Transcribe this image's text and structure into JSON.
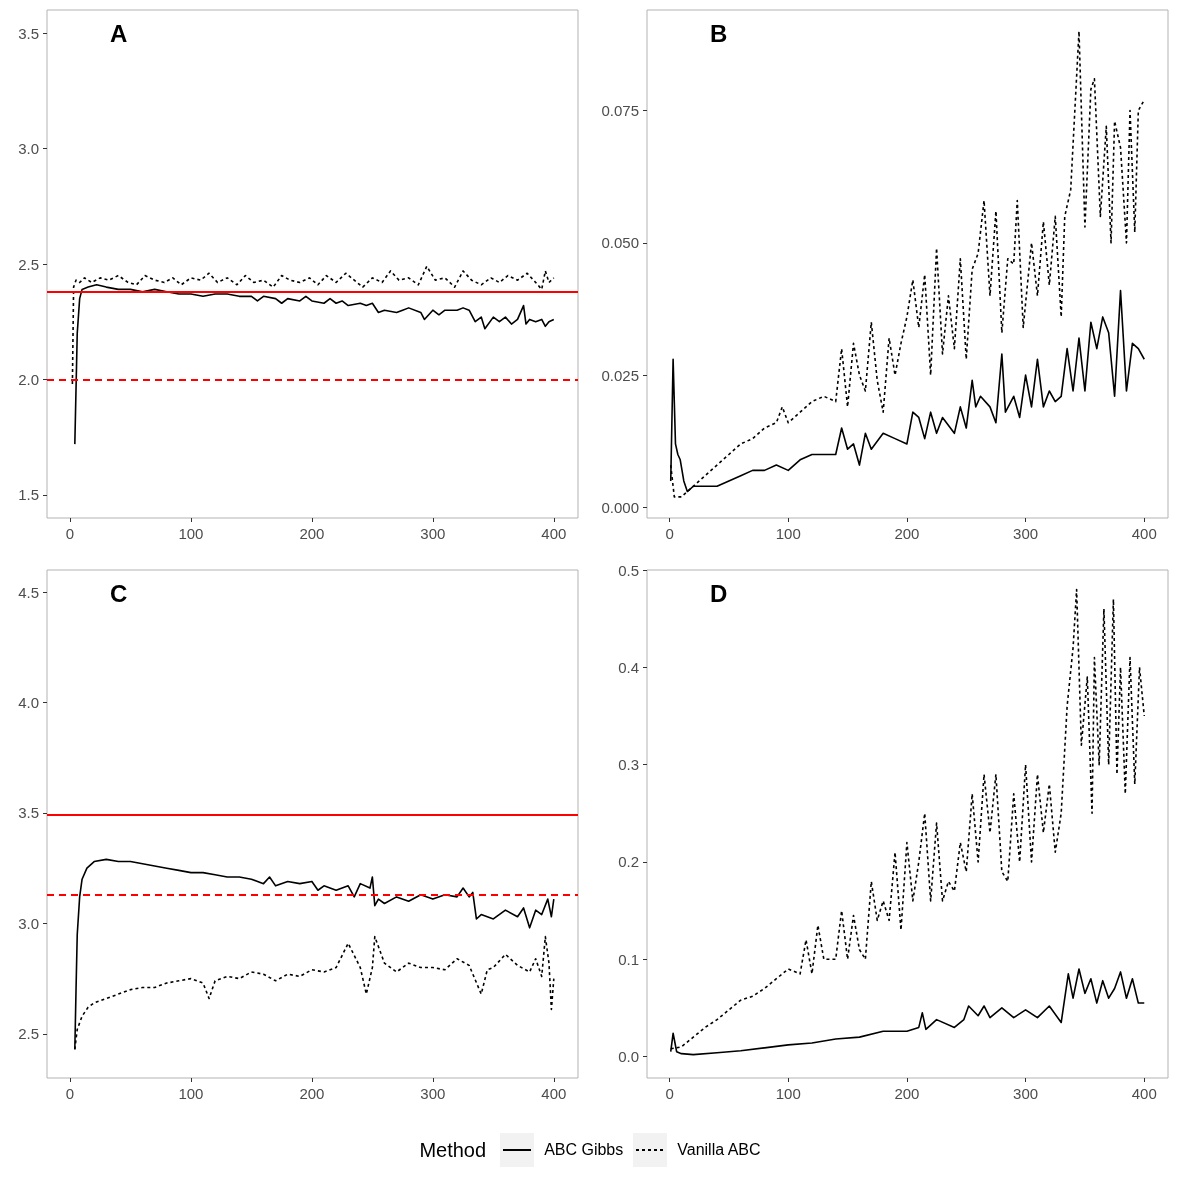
{
  "chart_data": [
    {
      "type": "line",
      "title": "A",
      "xlim": [
        -19,
        420
      ],
      "xticks": [
        0,
        100,
        200,
        300,
        400
      ],
      "ylim": [
        1.4,
        3.6
      ],
      "yticks": [
        1.5,
        {
          "value": 2,
          "label": "2.0"
        },
        2.5,
        {
          "value": 3,
          "label": "3.0"
        },
        3.5
      ],
      "ref_lines": [
        {
          "axis": "y",
          "value": 2.375,
          "color": "#ff0000",
          "line_style": "solid"
        },
        {
          "axis": "y",
          "value": 2.0,
          "color": "#ff0000",
          "line_style": "dashed"
        }
      ],
      "marker": "none",
      "legend": "bottom",
      "legend_title": "Method",
      "series": [
        {
          "name": "ABC Gibbs",
          "color": "#000000",
          "line_style": "solid",
          "x": [
            4,
            6,
            8,
            10,
            15,
            22,
            30,
            40,
            50,
            60,
            70,
            80,
            90,
            100,
            110,
            120,
            130,
            140,
            150,
            155,
            160,
            170,
            175,
            180,
            190,
            195,
            200,
            210,
            215,
            220,
            225,
            230,
            240,
            245,
            250,
            255,
            260,
            270,
            275,
            280,
            290,
            293,
            300,
            305,
            310,
            320,
            325,
            330,
            335,
            340,
            343,
            350,
            355,
            360,
            365,
            370,
            375,
            377,
            380,
            385,
            390,
            393,
            396,
            400
          ],
          "values": [
            1.72,
            2.2,
            2.35,
            2.39,
            2.4,
            2.41,
            2.4,
            2.39,
            2.39,
            2.38,
            2.39,
            2.38,
            2.37,
            2.37,
            2.36,
            2.37,
            2.37,
            2.36,
            2.36,
            2.34,
            2.36,
            2.35,
            2.33,
            2.35,
            2.34,
            2.36,
            2.34,
            2.33,
            2.35,
            2.33,
            2.34,
            2.32,
            2.33,
            2.32,
            2.33,
            2.29,
            2.3,
            2.29,
            2.3,
            2.31,
            2.29,
            2.26,
            2.3,
            2.28,
            2.3,
            2.3,
            2.31,
            2.3,
            2.25,
            2.27,
            2.22,
            2.27,
            2.25,
            2.27,
            2.24,
            2.26,
            2.32,
            2.24,
            2.26,
            2.25,
            2.26,
            2.23,
            2.25,
            2.26
          ]
        },
        {
          "name": "Vanilla ABC",
          "color": "#000000",
          "line_style": "dotted",
          "x": [
            2,
            3,
            5,
            8,
            12,
            18,
            25,
            32,
            40,
            48,
            55,
            62,
            70,
            78,
            85,
            92,
            100,
            108,
            115,
            122,
            130,
            138,
            145,
            152,
            160,
            168,
            175,
            182,
            190,
            198,
            205,
            212,
            220,
            228,
            235,
            242,
            250,
            258,
            265,
            272,
            280,
            288,
            295,
            302,
            310,
            318,
            325,
            332,
            340,
            348,
            355,
            362,
            370,
            378,
            385,
            390,
            393,
            396,
            400
          ],
          "values": [
            1.98,
            2.4,
            2.43,
            2.42,
            2.44,
            2.42,
            2.44,
            2.43,
            2.45,
            2.42,
            2.41,
            2.45,
            2.43,
            2.42,
            2.44,
            2.41,
            2.44,
            2.43,
            2.46,
            2.42,
            2.44,
            2.41,
            2.45,
            2.42,
            2.43,
            2.4,
            2.45,
            2.43,
            2.42,
            2.44,
            2.41,
            2.45,
            2.42,
            2.46,
            2.43,
            2.4,
            2.44,
            2.42,
            2.47,
            2.43,
            2.44,
            2.41,
            2.49,
            2.43,
            2.44,
            2.4,
            2.47,
            2.43,
            2.41,
            2.44,
            2.42,
            2.45,
            2.43,
            2.46,
            2.42,
            2.39,
            2.47,
            2.42,
            2.44
          ]
        }
      ]
    },
    {
      "type": "line",
      "title": "B",
      "xlim": [
        -19,
        420
      ],
      "xticks": [
        0,
        100,
        200,
        300,
        400
      ],
      "ylim": [
        -0.002,
        0.094
      ],
      "yticks": [
        {
          "value": 0,
          "label": "0.000"
        },
        {
          "value": 0.025,
          "label": "0.025"
        },
        {
          "value": 0.05,
          "label": "0.050"
        },
        {
          "value": 0.075,
          "label": "0.075"
        }
      ],
      "marker": "none",
      "series": [
        {
          "color": "#000000",
          "line_style": "solid",
          "x": [
            1,
            3,
            5,
            7,
            9,
            12,
            15,
            20,
            30,
            40,
            50,
            60,
            70,
            80,
            90,
            100,
            110,
            120,
            130,
            140,
            145,
            150,
            155,
            160,
            165,
            170,
            180,
            190,
            200,
            205,
            210,
            215,
            220,
            225,
            230,
            240,
            245,
            250,
            255,
            258,
            262,
            270,
            275,
            280,
            283,
            290,
            295,
            300,
            305,
            310,
            315,
            320,
            325,
            330,
            335,
            340,
            345,
            350,
            355,
            360,
            365,
            370,
            375,
            380,
            385,
            390,
            395,
            400
          ],
          "values": [
            0.005,
            0.028,
            0.012,
            0.01,
            0.009,
            0.005,
            0.003,
            0.004,
            0.004,
            0.004,
            0.005,
            0.006,
            0.007,
            0.007,
            0.008,
            0.007,
            0.009,
            0.01,
            0.01,
            0.01,
            0.015,
            0.011,
            0.012,
            0.008,
            0.014,
            0.011,
            0.014,
            0.013,
            0.012,
            0.018,
            0.017,
            0.013,
            0.018,
            0.014,
            0.017,
            0.014,
            0.019,
            0.015,
            0.024,
            0.019,
            0.021,
            0.019,
            0.016,
            0.029,
            0.018,
            0.021,
            0.017,
            0.025,
            0.019,
            0.028,
            0.019,
            0.022,
            0.02,
            0.021,
            0.03,
            0.022,
            0.032,
            0.022,
            0.035,
            0.03,
            0.036,
            0.033,
            0.021,
            0.041,
            0.022,
            0.031,
            0.03,
            0.028
          ]
        },
        {
          "color": "#000000",
          "line_style": "dotted",
          "x": [
            1,
            4,
            10,
            20,
            30,
            40,
            50,
            60,
            70,
            80,
            90,
            95,
            100,
            110,
            120,
            130,
            140,
            145,
            150,
            155,
            160,
            165,
            170,
            175,
            180,
            185,
            190,
            195,
            200,
            205,
            210,
            215,
            220,
            225,
            230,
            235,
            240,
            245,
            250,
            255,
            260,
            265,
            270,
            275,
            280,
            285,
            290,
            293,
            298,
            305,
            310,
            315,
            320,
            325,
            330,
            333,
            338,
            345,
            350,
            355,
            358,
            363,
            368,
            372,
            375,
            380,
            385,
            388,
            392,
            395,
            400
          ],
          "values": [
            0.008,
            0.002,
            0.002,
            0.004,
            0.006,
            0.008,
            0.01,
            0.012,
            0.013,
            0.015,
            0.016,
            0.019,
            0.016,
            0.018,
            0.02,
            0.021,
            0.02,
            0.03,
            0.019,
            0.031,
            0.025,
            0.022,
            0.035,
            0.024,
            0.018,
            0.032,
            0.025,
            0.031,
            0.036,
            0.043,
            0.034,
            0.044,
            0.025,
            0.049,
            0.029,
            0.04,
            0.03,
            0.047,
            0.028,
            0.045,
            0.048,
            0.058,
            0.04,
            0.056,
            0.033,
            0.047,
            0.046,
            0.058,
            0.034,
            0.05,
            0.04,
            0.054,
            0.042,
            0.055,
            0.036,
            0.055,
            0.06,
            0.09,
            0.053,
            0.079,
            0.081,
            0.055,
            0.072,
            0.05,
            0.073,
            0.068,
            0.05,
            0.075,
            0.052,
            0.075,
            0.077
          ]
        }
      ]
    },
    {
      "type": "line",
      "title": "C",
      "xlim": [
        -19,
        420
      ],
      "xticks": [
        0,
        100,
        200,
        300,
        400
      ],
      "ylim": [
        2.3,
        4.6
      ],
      "yticks": [
        2.5,
        {
          "value": 3,
          "label": "3.0"
        },
        3.5,
        {
          "value": 4,
          "label": "4.0"
        },
        4.5
      ],
      "ref_lines": [
        {
          "axis": "y",
          "value": 3.49,
          "color": "#ff0000",
          "line_style": "solid"
        },
        {
          "axis": "y",
          "value": 3.135,
          "color": "#ff0000",
          "line_style": "dashed"
        }
      ],
      "marker": "none",
      "series": [
        {
          "color": "#000000",
          "line_style": "solid",
          "x": [
            4,
            5,
            6,
            8,
            10,
            14,
            20,
            30,
            40,
            50,
            60,
            70,
            80,
            90,
            100,
            110,
            120,
            130,
            140,
            150,
            160,
            165,
            170,
            180,
            190,
            200,
            205,
            210,
            220,
            230,
            235,
            240,
            248,
            250,
            252,
            255,
            260,
            270,
            280,
            290,
            300,
            310,
            320,
            325,
            330,
            333,
            336,
            340,
            350,
            360,
            370,
            375,
            380,
            385,
            390,
            395,
            398,
            400
          ],
          "values": [
            2.43,
            2.7,
            2.95,
            3.12,
            3.2,
            3.25,
            3.28,
            3.29,
            3.28,
            3.28,
            3.27,
            3.26,
            3.25,
            3.24,
            3.23,
            3.23,
            3.22,
            3.21,
            3.21,
            3.2,
            3.18,
            3.21,
            3.17,
            3.19,
            3.18,
            3.19,
            3.15,
            3.17,
            3.15,
            3.17,
            3.12,
            3.18,
            3.16,
            3.21,
            3.08,
            3.11,
            3.09,
            3.12,
            3.1,
            3.13,
            3.11,
            3.13,
            3.12,
            3.16,
            3.12,
            3.14,
            3.02,
            3.04,
            3.02,
            3.06,
            3.03,
            3.07,
            2.98,
            3.06,
            3.04,
            3.11,
            3.03,
            3.11
          ]
        },
        {
          "color": "#000000",
          "line_style": "dotted",
          "x": [
            4,
            6,
            10,
            15,
            20,
            30,
            40,
            50,
            60,
            70,
            80,
            90,
            100,
            110,
            115,
            120,
            130,
            140,
            150,
            160,
            170,
            180,
            190,
            200,
            210,
            220,
            230,
            240,
            245,
            250,
            252,
            260,
            270,
            280,
            290,
            300,
            310,
            320,
            330,
            340,
            345,
            350,
            360,
            370,
            380,
            385,
            390,
            393,
            396,
            398,
            400
          ],
          "values": [
            2.43,
            2.52,
            2.58,
            2.62,
            2.64,
            2.66,
            2.68,
            2.7,
            2.71,
            2.71,
            2.73,
            2.74,
            2.75,
            2.73,
            2.66,
            2.74,
            2.76,
            2.75,
            2.78,
            2.77,
            2.74,
            2.77,
            2.76,
            2.79,
            2.78,
            2.8,
            2.91,
            2.8,
            2.68,
            2.8,
            2.94,
            2.82,
            2.78,
            2.82,
            2.8,
            2.8,
            2.79,
            2.84,
            2.81,
            2.68,
            2.79,
            2.8,
            2.86,
            2.81,
            2.78,
            2.84,
            2.76,
            2.94,
            2.82,
            2.61,
            2.75
          ]
        }
      ]
    },
    {
      "type": "line",
      "title": "D",
      "xlim": [
        -19,
        420
      ],
      "xticks": [
        0,
        100,
        200,
        300,
        400
      ],
      "ylim": [
        -0.022,
        0.5
      ],
      "yticks": [
        {
          "value": 0,
          "label": "0.0"
        },
        0.1,
        0.2,
        0.3,
        0.4,
        0.5
      ],
      "marker": "none",
      "series": [
        {
          "color": "#000000",
          "line_style": "solid",
          "x": [
            1,
            3,
            6,
            10,
            20,
            40,
            60,
            80,
            100,
            120,
            140,
            160,
            180,
            200,
            210,
            213,
            216,
            225,
            240,
            248,
            252,
            260,
            265,
            270,
            280,
            290,
            300,
            310,
            320,
            330,
            333,
            336,
            340,
            345,
            350,
            355,
            360,
            365,
            370,
            375,
            380,
            385,
            390,
            395,
            400
          ],
          "values": [
            0.005,
            0.024,
            0.005,
            0.003,
            0.002,
            0.004,
            0.006,
            0.009,
            0.012,
            0.014,
            0.018,
            0.02,
            0.026,
            0.026,
            0.03,
            0.045,
            0.028,
            0.038,
            0.03,
            0.038,
            0.052,
            0.042,
            0.052,
            0.04,
            0.05,
            0.04,
            0.048,
            0.04,
            0.052,
            0.035,
            0.06,
            0.085,
            0.06,
            0.09,
            0.065,
            0.08,
            0.055,
            0.078,
            0.06,
            0.07,
            0.087,
            0.06,
            0.08,
            0.055,
            0.055
          ]
        },
        {
          "color": "#000000",
          "line_style": "dotted",
          "x": [
            1,
            10,
            20,
            30,
            40,
            50,
            60,
            70,
            80,
            90,
            100,
            110,
            115,
            120,
            125,
            130,
            140,
            145,
            150,
            155,
            160,
            165,
            170,
            175,
            180,
            185,
            190,
            195,
            200,
            205,
            210,
            215,
            220,
            225,
            230,
            235,
            240,
            245,
            250,
            255,
            260,
            265,
            270,
            275,
            280,
            285,
            290,
            295,
            300,
            305,
            310,
            315,
            320,
            325,
            330,
            335,
            340,
            343,
            347,
            352,
            356,
            358,
            362,
            366,
            370,
            374,
            377,
            380,
            384,
            388,
            392,
            396,
            400
          ],
          "values": [
            0.008,
            0.01,
            0.02,
            0.03,
            0.038,
            0.048,
            0.058,
            0.062,
            0.07,
            0.08,
            0.09,
            0.085,
            0.12,
            0.085,
            0.135,
            0.1,
            0.1,
            0.15,
            0.1,
            0.145,
            0.11,
            0.1,
            0.18,
            0.14,
            0.16,
            0.14,
            0.21,
            0.13,
            0.22,
            0.16,
            0.2,
            0.25,
            0.16,
            0.24,
            0.16,
            0.18,
            0.17,
            0.22,
            0.19,
            0.27,
            0.2,
            0.29,
            0.23,
            0.29,
            0.19,
            0.18,
            0.27,
            0.2,
            0.3,
            0.2,
            0.29,
            0.23,
            0.28,
            0.21,
            0.25,
            0.36,
            0.42,
            0.48,
            0.32,
            0.39,
            0.25,
            0.41,
            0.3,
            0.46,
            0.3,
            0.47,
            0.29,
            0.4,
            0.27,
            0.41,
            0.28,
            0.4,
            0.35
          ]
        }
      ]
    }
  ]
}
